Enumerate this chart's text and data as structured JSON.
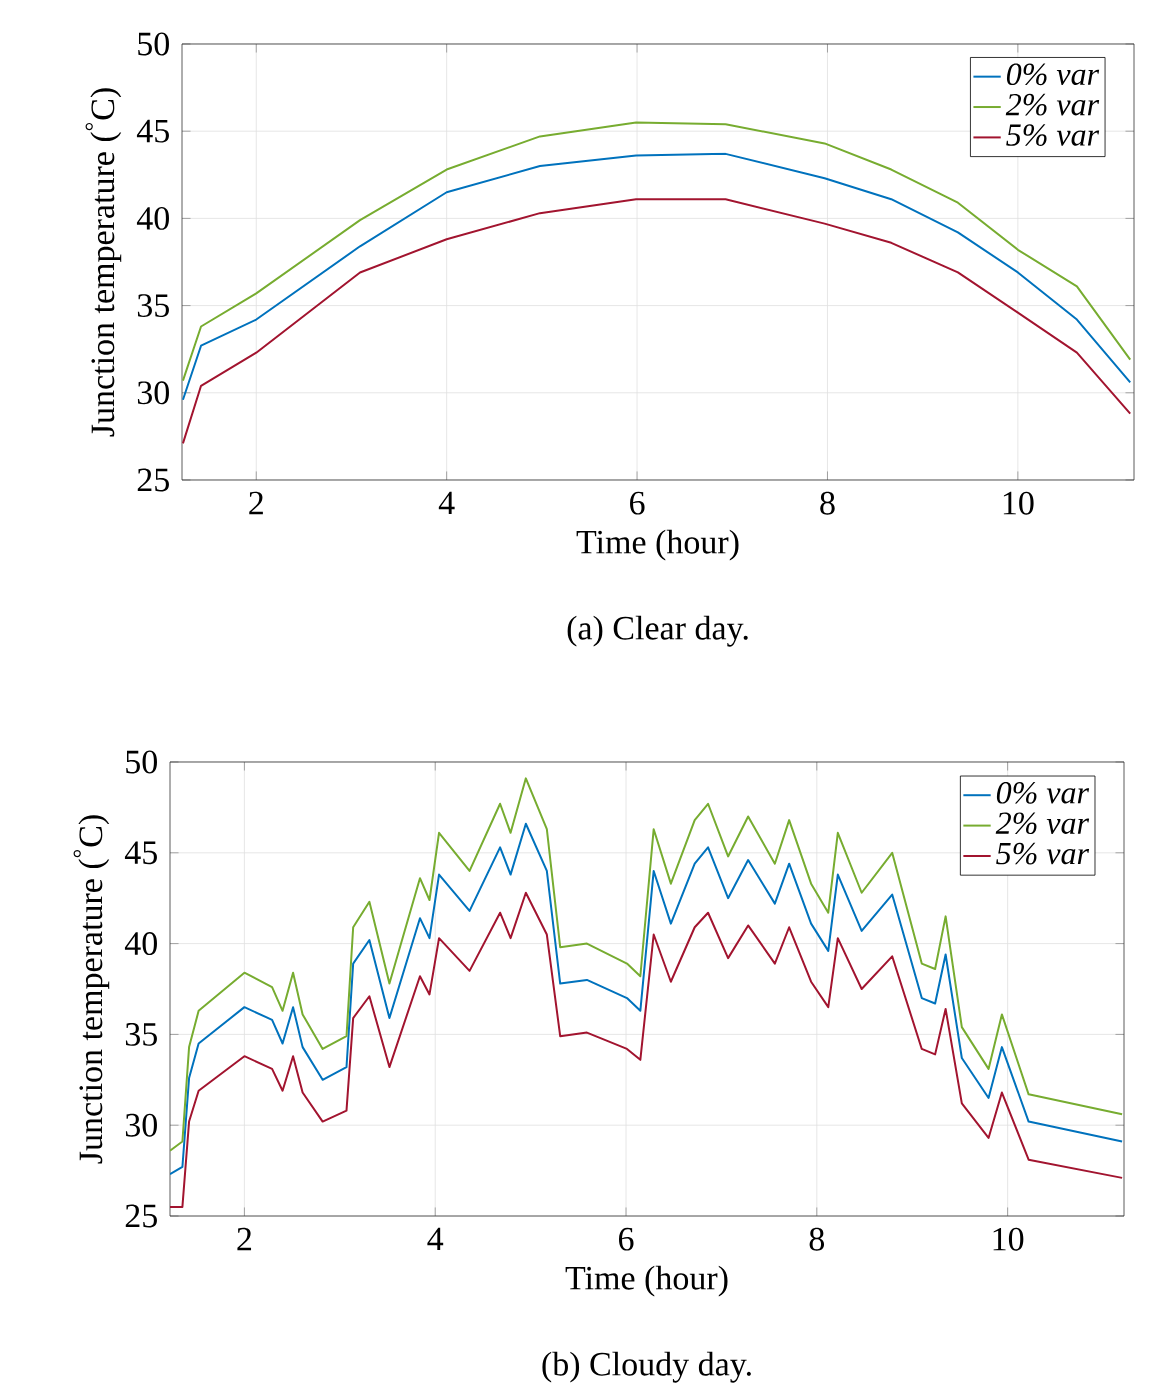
{
  "chart_data": [
    {
      "type": "line",
      "title": "(a)  Clear day.",
      "xlabel": "Time (hour)",
      "ylabel": "Junction temperature ($^{°}$C)",
      "xlim": [
        1.22,
        11.22
      ],
      "ylim": [
        25,
        50
      ],
      "xticks": [
        2,
        4,
        6,
        8,
        10
      ],
      "yticks": [
        25,
        30,
        35,
        40,
        45,
        50
      ],
      "grid": true,
      "legend": "top right",
      "series": [
        {
          "name": "0% var",
          "color": "#0072bd",
          "x": [
            1.23,
            1.42,
            2,
            3.09,
            4,
            4.98,
            5.99,
            6.93,
            7.97,
            8.67,
            9.37,
            10,
            10.62,
            11.18
          ],
          "values": [
            29.6,
            32.7,
            34.2,
            38.4,
            41.5,
            43.0,
            43.6,
            43.7,
            42.3,
            41.1,
            39.2,
            36.9,
            34.2,
            30.6
          ]
        },
        {
          "name": "2% var",
          "color": "#77ac30",
          "x": [
            1.23,
            1.42,
            2,
            3.09,
            4,
            4.98,
            5.99,
            6.93,
            7.97,
            8.67,
            9.37,
            10,
            10.62,
            11.18
          ],
          "values": [
            30.7,
            33.8,
            35.7,
            39.9,
            42.8,
            44.7,
            45.5,
            45.4,
            44.3,
            42.8,
            40.9,
            38.2,
            36.1,
            31.9
          ]
        },
        {
          "name": "5% var",
          "color": "#a2142f",
          "x": [
            1.23,
            1.42,
            2,
            3.09,
            4,
            4.98,
            5.99,
            6.93,
            7.97,
            8.67,
            9.37,
            10,
            10.62,
            11.18
          ],
          "values": [
            27.1,
            30.4,
            32.3,
            36.9,
            38.8,
            40.3,
            41.1,
            41.1,
            39.7,
            38.6,
            36.9,
            34.6,
            32.3,
            28.8
          ]
        }
      ]
    },
    {
      "type": "line",
      "title": "(b)  Cloudy day.",
      "xlabel": "Time (hour)",
      "ylabel": "Junction temperature ($^{°}$C)",
      "xlim": [
        1.22,
        11.22
      ],
      "ylim": [
        25,
        50
      ],
      "xticks": [
        2,
        4,
        6,
        8,
        10
      ],
      "yticks": [
        25,
        30,
        35,
        40,
        45,
        50
      ],
      "grid": true,
      "legend": "top right",
      "series": [
        {
          "name": "0% var",
          "color": "#0072bd",
          "x": [
            1.22,
            1.35,
            1.42,
            1.52,
            2.0,
            2.29,
            2.4,
            2.51,
            2.61,
            2.82,
            3.07,
            3.14,
            3.31,
            3.52,
            3.84,
            3.94,
            4.04,
            4.36,
            4.68,
            4.79,
            4.95,
            5.17,
            5.31,
            5.59,
            6.01,
            6.15,
            6.29,
            6.47,
            6.72,
            6.86,
            7.07,
            7.28,
            7.56,
            7.71,
            7.94,
            8.12,
            8.22,
            8.47,
            8.79,
            9.1,
            9.24,
            9.35,
            9.52,
            9.8,
            9.94,
            10.22,
            11.2
          ],
          "values": [
            27.3,
            27.7,
            32.6,
            34.5,
            36.5,
            35.8,
            34.5,
            36.5,
            34.3,
            32.5,
            33.2,
            38.9,
            40.2,
            35.9,
            41.4,
            40.3,
            43.8,
            41.8,
            45.3,
            43.8,
            46.6,
            44.0,
            37.8,
            38.0,
            37.0,
            36.3,
            44.0,
            41.1,
            44.4,
            45.3,
            42.5,
            44.6,
            42.2,
            44.4,
            41.1,
            39.6,
            43.8,
            40.7,
            42.7,
            37.0,
            36.7,
            39.4,
            33.7,
            31.5,
            34.3,
            30.2,
            29.1
          ]
        },
        {
          "name": "2% var",
          "color": "#77ac30",
          "x": [
            1.22,
            1.35,
            1.42,
            1.52,
            2.0,
            2.29,
            2.4,
            2.51,
            2.61,
            2.82,
            3.07,
            3.14,
            3.31,
            3.52,
            3.84,
            3.94,
            4.04,
            4.36,
            4.68,
            4.79,
            4.95,
            5.17,
            5.31,
            5.59,
            6.01,
            6.15,
            6.29,
            6.47,
            6.72,
            6.86,
            7.07,
            7.28,
            7.56,
            7.71,
            7.94,
            8.12,
            8.22,
            8.47,
            8.79,
            9.1,
            9.24,
            9.35,
            9.52,
            9.8,
            9.94,
            10.22,
            11.2
          ],
          "values": [
            28.6,
            29.1,
            34.3,
            36.3,
            38.4,
            37.6,
            36.3,
            38.4,
            36.1,
            34.2,
            34.9,
            40.9,
            42.3,
            37.8,
            43.6,
            42.4,
            46.1,
            44.0,
            47.7,
            46.1,
            49.1,
            46.3,
            39.8,
            40.0,
            38.9,
            38.2,
            46.3,
            43.3,
            46.8,
            47.7,
            44.8,
            47.0,
            44.4,
            46.8,
            43.3,
            41.7,
            46.1,
            42.8,
            45.0,
            38.9,
            38.6,
            41.5,
            35.4,
            33.1,
            36.1,
            31.7,
            30.6
          ]
        },
        {
          "name": "5% var",
          "color": "#a2142f",
          "x": [
            1.22,
            1.35,
            1.42,
            1.52,
            2.0,
            2.29,
            2.4,
            2.51,
            2.61,
            2.82,
            3.07,
            3.14,
            3.31,
            3.52,
            3.84,
            3.94,
            4.04,
            4.36,
            4.68,
            4.79,
            4.95,
            5.17,
            5.31,
            5.59,
            6.01,
            6.15,
            6.29,
            6.47,
            6.72,
            6.86,
            7.07,
            7.28,
            7.56,
            7.71,
            7.94,
            8.12,
            8.22,
            8.47,
            8.79,
            9.1,
            9.24,
            9.35,
            9.52,
            9.8,
            9.94,
            10.22,
            11.2
          ],
          "values": [
            25.5,
            25.5,
            30.2,
            31.9,
            33.8,
            33.1,
            31.9,
            33.8,
            31.8,
            30.2,
            30.8,
            35.9,
            37.1,
            33.2,
            38.2,
            37.2,
            40.3,
            38.5,
            41.7,
            40.3,
            42.8,
            40.5,
            34.9,
            35.1,
            34.2,
            33.6,
            40.5,
            37.9,
            40.9,
            41.7,
            39.2,
            41.0,
            38.9,
            40.9,
            37.9,
            36.5,
            40.3,
            37.5,
            39.3,
            34.2,
            33.9,
            36.4,
            31.2,
            29.3,
            31.8,
            28.1,
            27.1
          ]
        }
      ]
    }
  ]
}
